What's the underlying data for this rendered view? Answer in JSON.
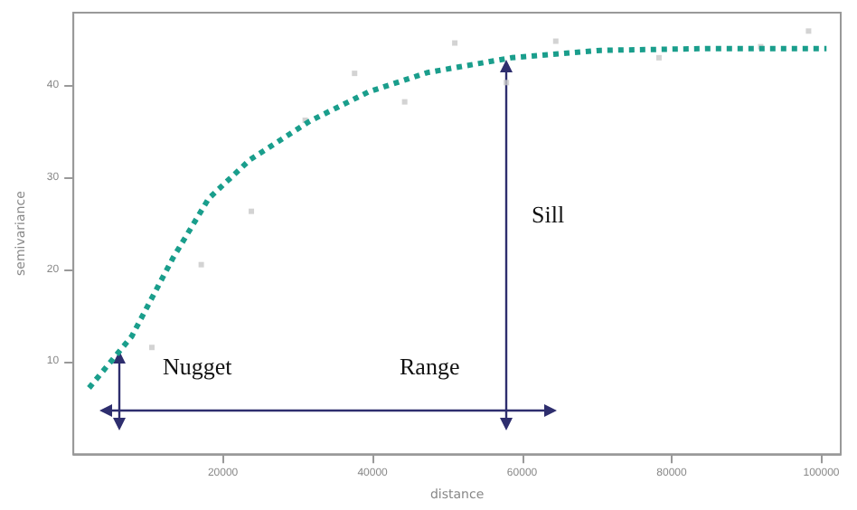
{
  "chart_data": {
    "type": "scatter",
    "xlabel": "distance",
    "ylabel": "semivariance",
    "xlim": [
      0,
      102600
    ],
    "ylim": [
      0,
      48
    ],
    "xticks": [
      20000,
      40000,
      60000,
      80000,
      100000
    ],
    "yticks": [
      10,
      20,
      30,
      40
    ],
    "series": [
      {
        "type": "scatter",
        "color": "#c8c8c8",
        "marker": "square",
        "x": [
          10500,
          17100,
          23800,
          31000,
          37600,
          44300,
          51000,
          57900,
          64500,
          78300,
          91900,
          98300
        ],
        "values": [
          11.6,
          20.6,
          26.4,
          36.3,
          41.4,
          38.3,
          44.7,
          40.4,
          44.9,
          43.1,
          44.3,
          46.0
        ]
      },
      {
        "type": "line",
        "color": "#1a9e8c",
        "line_style": "dotted",
        "marker": "none",
        "x": [
          2100,
          7800,
          13300,
          18100,
          23600,
          31600,
          39500,
          47400,
          58600,
          70500,
          85000,
          100700
        ],
        "values": [
          7.2,
          12.8,
          21.3,
          27.8,
          32.0,
          36.2,
          39.4,
          41.5,
          43.1,
          43.9,
          44.1,
          44.1
        ]
      }
    ],
    "annotations": [
      "Nugget",
      "Sill",
      "Range"
    ]
  }
}
